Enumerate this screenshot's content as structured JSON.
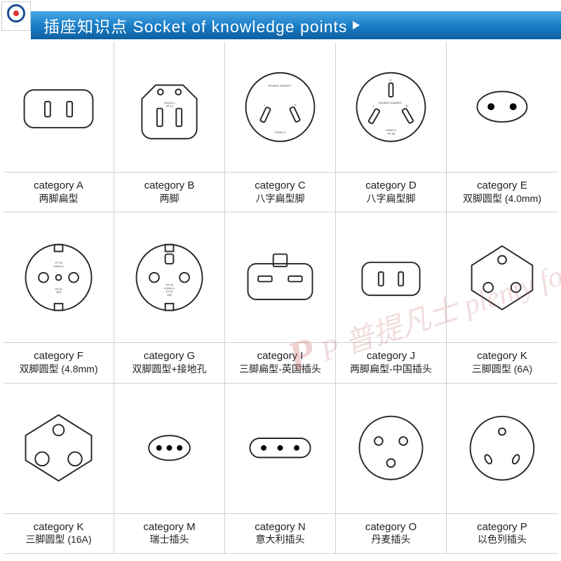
{
  "header": {
    "title": "插座知识点 Socket of knowledge points",
    "bg_gradient": [
      "#4aa8e8",
      "#1b7fc7",
      "#0d5fa0"
    ],
    "text_color": "#ffffff"
  },
  "logo": {
    "border_color": "#1a4d8f",
    "dot_color": "#d33333",
    "caption": "···"
  },
  "watermark": {
    "text": "P 普提凡士 plenty for sein",
    "color": "rgba(200,120,120,0.25)"
  },
  "grid": {
    "cols": 5,
    "rows": 3,
    "border_color": "#d0d0d0",
    "stroke_color": "#2a2a2a",
    "label_fontsize": 15,
    "sub_fontsize": 14
  },
  "items": [
    {
      "svg": "A",
      "cat": "category A",
      "sub": "两脚扁型",
      "tiny": ""
    },
    {
      "svg": "B",
      "cat": "category B",
      "sub": "两脚",
      "tiny": "YUNG-LI YP-12"
    },
    {
      "svg": "C",
      "cat": "category C",
      "sub": "八字扁型脚",
      "tiny": "N/14870 10A250V~ YUNG LI"
    },
    {
      "svg": "D",
      "cat": "category D",
      "sub": "八字扁型脚",
      "tiny": "N/14870 10A250V~ YUNG LI YP-38"
    },
    {
      "svg": "E",
      "cat": "category E",
      "sub": "双脚圆型 (4.0mm)",
      "tiny": ""
    },
    {
      "svg": "F",
      "cat": "category F",
      "sub": "双脚圆型 (4.8mm)",
      "tiny": "YP-24 YUNG-LI 16-16 250"
    },
    {
      "svg": "G",
      "cat": "category G",
      "sub": "双脚圆型+接地孔",
      "tiny": "YP-23 YUNG-LI 10-16 250"
    },
    {
      "svg": "I",
      "cat": "category I",
      "sub": "三脚扁型-英国插头",
      "tiny": ""
    },
    {
      "svg": "J",
      "cat": "category J",
      "sub": "两脚扁型-中国插头",
      "tiny": ""
    },
    {
      "svg": "K",
      "cat": "category K",
      "sub": "三脚圆型 (6A)",
      "tiny": ""
    },
    {
      "svg": "K2",
      "cat": "category K",
      "sub": "三脚圆型 (16A)",
      "tiny": ""
    },
    {
      "svg": "M",
      "cat": "category M",
      "sub": "瑞士插头",
      "tiny": ""
    },
    {
      "svg": "N",
      "cat": "category N",
      "sub": "意大利插头",
      "tiny": ""
    },
    {
      "svg": "O",
      "cat": "category O",
      "sub": "丹麦插头",
      "tiny": ""
    },
    {
      "svg": "P",
      "cat": "category P",
      "sub": "以色列插头",
      "tiny": ""
    }
  ]
}
